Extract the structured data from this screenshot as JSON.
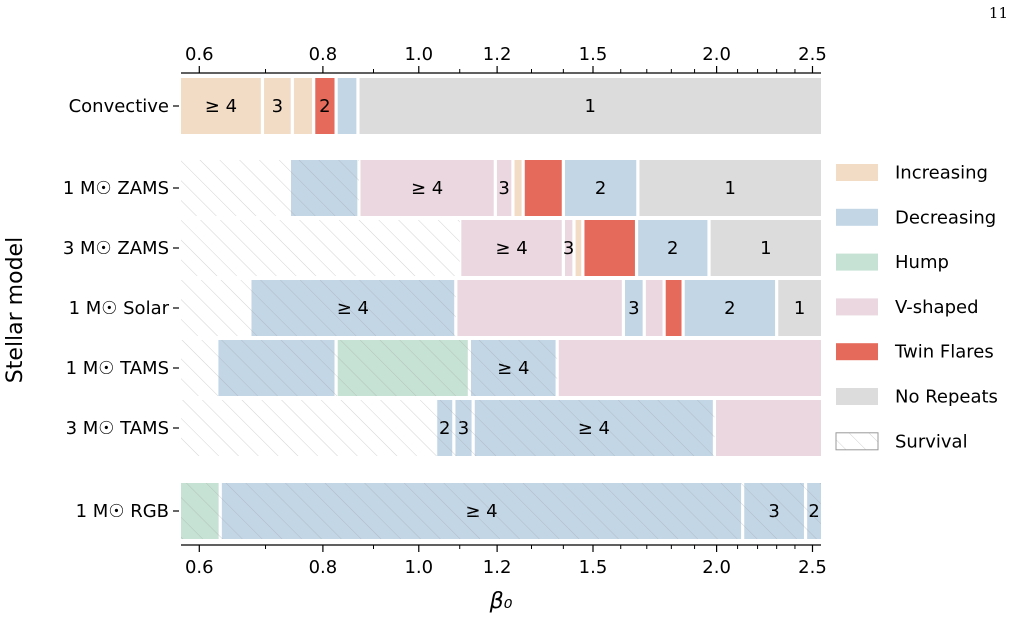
{
  "page": {
    "number": "11"
  },
  "chart_data": {
    "type": "bar",
    "orientation": "horizontal-segmented",
    "xscale": "log",
    "xlim": [
      0.575,
      2.55
    ],
    "xticks": [
      0.6,
      0.8,
      1.0,
      1.2,
      1.5,
      2.0,
      2.5
    ],
    "xtick_labels": [
      "0.6",
      "0.8",
      "1.0",
      "1.2",
      "1.5",
      "2.0",
      "2.5"
    ],
    "xlabel": "β₀",
    "ylabel": "Stellar model",
    "legend_position": "right",
    "colors": {
      "Increasing": "#f2dcc5",
      "Decreasing": "#c3d6e6",
      "Hump": "#c6e2d4",
      "V-shaped": "#ead7e0",
      "Twin Flares": "#e66a5b",
      "No Repeats": "#dcdcdc"
    },
    "legend": [
      {
        "label": "Increasing",
        "kind": "Increasing"
      },
      {
        "label": "Decreasing",
        "kind": "Decreasing"
      },
      {
        "label": "Hump",
        "kind": "Hump"
      },
      {
        "label": "V-shaped",
        "kind": "V-shaped"
      },
      {
        "label": "Twin Flares",
        "kind": "Twin Flares"
      },
      {
        "label": "No Repeats",
        "kind": "No Repeats"
      },
      {
        "label": "Survival",
        "kind": "Survival"
      }
    ],
    "rows": [
      {
        "label": "Convective",
        "segments": [
          {
            "x0": 0.575,
            "x1": 0.695,
            "kind": "Increasing",
            "label": "≥ 4"
          },
          {
            "x0": 0.695,
            "x1": 0.745,
            "kind": "Increasing",
            "label": "3"
          },
          {
            "x0": 0.745,
            "x1": 0.783,
            "kind": "Increasing",
            "label": ""
          },
          {
            "x0": 0.783,
            "x1": 0.825,
            "kind": "Twin Flares",
            "label": "2"
          },
          {
            "x0": 0.825,
            "x1": 0.868,
            "kind": "Decreasing",
            "label": ""
          },
          {
            "x0": 0.868,
            "x1": 2.55,
            "kind": "No Repeats",
            "label": "1"
          }
        ],
        "survival": []
      },
      {
        "label": "1 M☉ ZAMS",
        "segments": [
          {
            "x0": 0.74,
            "x1": 0.87,
            "kind": "Decreasing",
            "label": ""
          },
          {
            "x0": 0.87,
            "x1": 1.195,
            "kind": "V-shaped",
            "label": "≥ 4"
          },
          {
            "x0": 1.195,
            "x1": 1.245,
            "kind": "V-shaped",
            "label": "3"
          },
          {
            "x0": 1.245,
            "x1": 1.275,
            "kind": "Increasing",
            "label": ""
          },
          {
            "x0": 1.275,
            "x1": 1.4,
            "kind": "Twin Flares",
            "label": ""
          },
          {
            "x0": 1.4,
            "x1": 1.665,
            "kind": "Decreasing",
            "label": "2"
          },
          {
            "x0": 1.665,
            "x1": 2.55,
            "kind": "No Repeats",
            "label": "1"
          }
        ],
        "survival": [
          [
            0.575,
            0.87
          ]
        ]
      },
      {
        "label": "3 M☉ ZAMS",
        "segments": [
          {
            "x0": 1.1,
            "x1": 1.4,
            "kind": "V-shaped",
            "label": "≥ 4"
          },
          {
            "x0": 1.4,
            "x1": 1.435,
            "kind": "V-shaped",
            "label": "3"
          },
          {
            "x0": 1.435,
            "x1": 1.465,
            "kind": "Increasing",
            "label": ""
          },
          {
            "x0": 1.465,
            "x1": 1.66,
            "kind": "Twin Flares",
            "label": ""
          },
          {
            "x0": 1.66,
            "x1": 1.965,
            "kind": "Decreasing",
            "label": "2"
          },
          {
            "x0": 1.965,
            "x1": 2.55,
            "kind": "No Repeats",
            "label": "1"
          }
        ],
        "survival": [
          [
            0.575,
            1.1
          ]
        ]
      },
      {
        "label": "1 M☉ Solar",
        "segments": [
          {
            "x0": 0.675,
            "x1": 1.09,
            "kind": "Decreasing",
            "label": "≥ 4"
          },
          {
            "x0": 1.09,
            "x1": 1.61,
            "kind": "V-shaped",
            "label": ""
          },
          {
            "x0": 1.61,
            "x1": 1.69,
            "kind": "Decreasing",
            "label": "3"
          },
          {
            "x0": 1.69,
            "x1": 1.77,
            "kind": "V-shaped",
            "label": ""
          },
          {
            "x0": 1.77,
            "x1": 1.85,
            "kind": "Twin Flares",
            "label": ""
          },
          {
            "x0": 1.85,
            "x1": 2.3,
            "kind": "Decreasing",
            "label": "2"
          },
          {
            "x0": 2.3,
            "x1": 2.55,
            "kind": "No Repeats",
            "label": "1"
          }
        ],
        "survival": [
          [
            0.575,
            1.09
          ]
        ]
      },
      {
        "label": "1 M☉ TAMS",
        "segments": [
          {
            "x0": 0.625,
            "x1": 0.825,
            "kind": "Decreasing",
            "label": ""
          },
          {
            "x0": 0.825,
            "x1": 1.125,
            "kind": "Hump",
            "label": ""
          },
          {
            "x0": 1.125,
            "x1": 1.38,
            "kind": "Decreasing",
            "label": "≥ 4"
          },
          {
            "x0": 1.38,
            "x1": 2.55,
            "kind": "V-shaped",
            "label": ""
          }
        ],
        "survival": [
          [
            0.575,
            1.38
          ]
        ]
      },
      {
        "label": "3 M☉ TAMS",
        "segments": [
          {
            "x0": 1.04,
            "x1": 1.085,
            "kind": "Decreasing",
            "label": "2"
          },
          {
            "x0": 1.085,
            "x1": 1.135,
            "kind": "Decreasing",
            "label": "3"
          },
          {
            "x0": 1.135,
            "x1": 1.99,
            "kind": "Decreasing",
            "label": "≥ 4"
          },
          {
            "x0": 1.99,
            "x1": 2.55,
            "kind": "V-shaped",
            "label": ""
          }
        ],
        "survival": [
          [
            0.575,
            1.99
          ]
        ]
      },
      {
        "label": "1 M☉ RGB",
        "segments": [
          {
            "x0": 0.575,
            "x1": 0.63,
            "kind": "Hump",
            "label": ""
          },
          {
            "x0": 0.63,
            "x1": 2.125,
            "kind": "Decreasing",
            "label": "≥ 4"
          },
          {
            "x0": 2.125,
            "x1": 2.46,
            "kind": "Decreasing",
            "label": "3"
          },
          {
            "x0": 2.46,
            "x1": 2.55,
            "kind": "Decreasing",
            "label": "2"
          }
        ],
        "survival": [
          [
            0.575,
            2.55
          ]
        ]
      }
    ]
  }
}
